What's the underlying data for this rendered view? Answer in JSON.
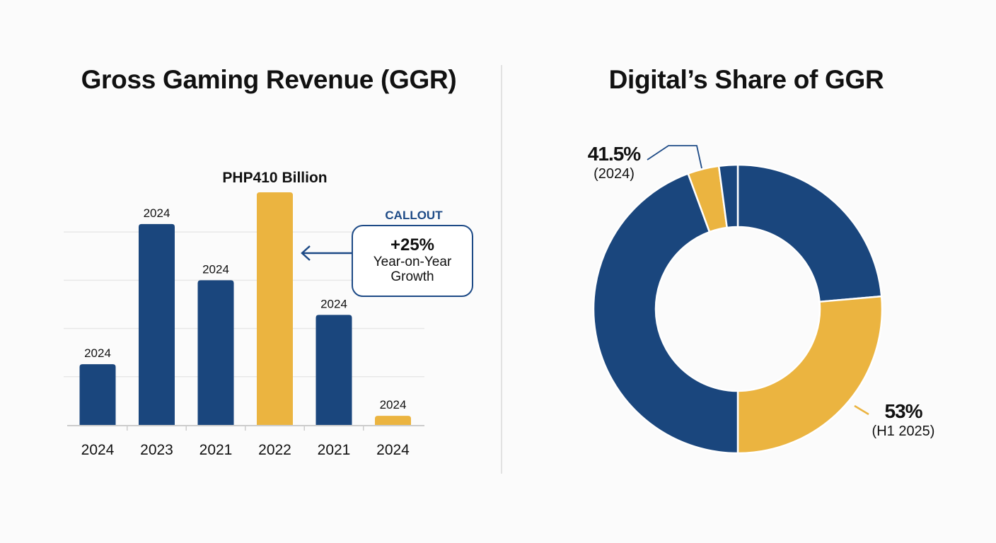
{
  "colors": {
    "navy": "#1a467d",
    "gold": "#ebb440",
    "text": "#111111",
    "grid": "#e8e8e8",
    "axis": "#cccccc",
    "callout": "#1d4a86"
  },
  "chart_data": [
    {
      "type": "bar",
      "title": "Gross Gaming Revenue (GGR)",
      "xlabel": "",
      "ylabel": "",
      "categories": [
        "2024",
        "2023",
        "2021",
        "2022",
        "2021",
        "2024"
      ],
      "values": [
        107,
        354,
        255,
        410,
        194,
        16
      ],
      "bar_labels": [
        "2024",
        "2024",
        "2024",
        "PHP410 Billion",
        "2024",
        "2024"
      ],
      "highlight": [
        false,
        false,
        false,
        true,
        false,
        true
      ],
      "units": "PHP billion",
      "ylim": [
        0,
        410
      ],
      "gridlines": [
        85,
        170,
        255,
        340
      ],
      "grid": true,
      "annotation": {
        "title": "CALLOUT",
        "value": "+25%",
        "text_lines": [
          "Year-on-Year",
          "Growth"
        ],
        "points_to": "2022"
      }
    },
    {
      "type": "pie",
      "title": "Digital’s Share of GGR",
      "donut": true,
      "segments": [
        {
          "percent": 23.6,
          "color": "navy"
        },
        {
          "percent": 26.4,
          "color": "gold"
        },
        {
          "percent": 44.4,
          "color": "navy"
        },
        {
          "percent": 3.5,
          "color": "gold"
        },
        {
          "percent": 2.1,
          "color": "navy"
        }
      ],
      "annotations": [
        {
          "value": "41.5%",
          "sub": "(2024)",
          "points_to_segment": 3
        },
        {
          "value": "53%",
          "sub": "(H1 2025)",
          "points_to_segment": 1
        }
      ]
    }
  ]
}
